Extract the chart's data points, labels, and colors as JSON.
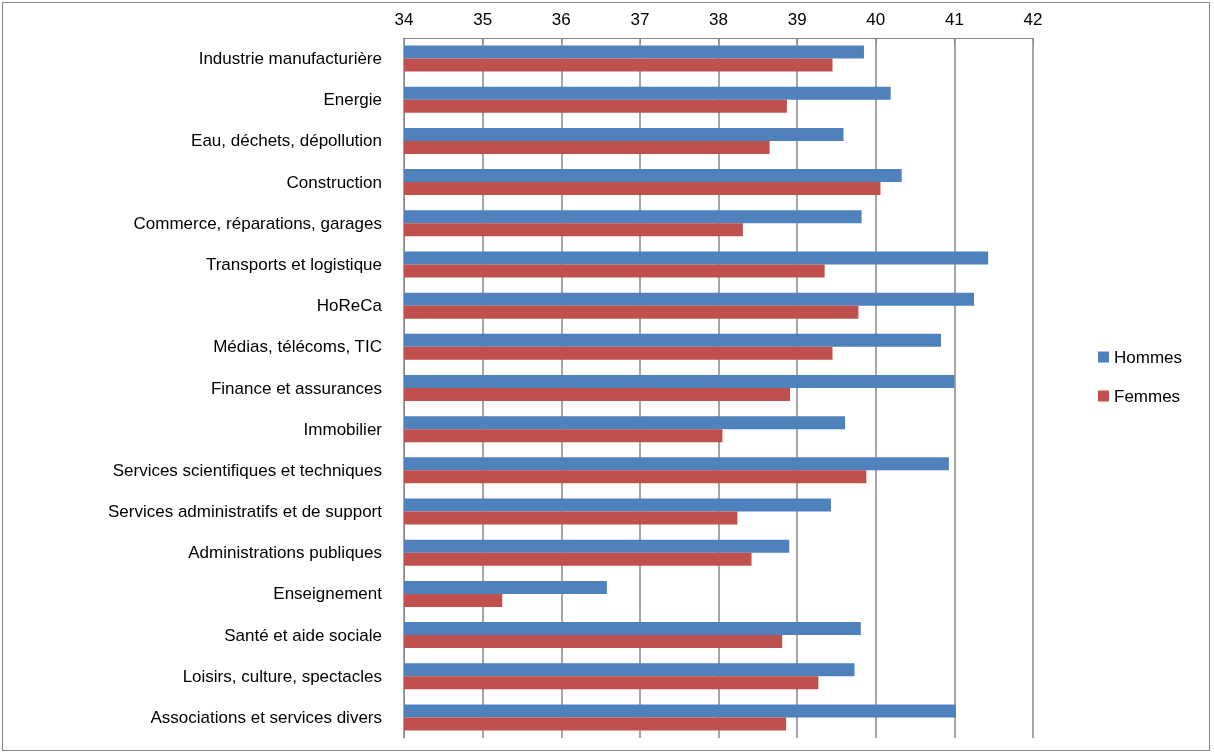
{
  "chart_data": {
    "type": "bar",
    "orientation": "horizontal",
    "categories": [
      "Industrie manufacturière",
      "Energie",
      "Eau, déchets, dépollution",
      "Construction",
      "Commerce, réparations, garages",
      "Transports et logistique",
      "HoReCa",
      "Médias, télécoms, TIC",
      "Finance et assurances",
      "Immobilier",
      "Services scientifiques et techniques",
      "Services administratifs et de support",
      "Administrations publiques",
      "Enseignement",
      "Santé et aide sociale",
      "Loisirs, culture, spectacles",
      "Associations et services divers"
    ],
    "series": [
      {
        "name": "Hommes",
        "color": "#4f81bd",
        "values": [
          39.85,
          40.19,
          39.59,
          40.33,
          39.82,
          41.43,
          41.25,
          40.83,
          41.0,
          39.61,
          40.93,
          39.43,
          38.9,
          36.58,
          39.81,
          39.73,
          41.02
        ]
      },
      {
        "name": "Femmes",
        "color": "#c0504d",
        "values": [
          39.45,
          38.87,
          38.65,
          40.06,
          38.31,
          39.35,
          39.78,
          39.45,
          38.91,
          38.05,
          39.88,
          38.24,
          38.42,
          35.25,
          38.81,
          39.27,
          38.86
        ]
      }
    ],
    "xlim": [
      34,
      42
    ],
    "xticks": [
      34,
      35,
      36,
      37,
      38,
      39,
      40,
      41,
      42
    ],
    "grid": "x",
    "legend": "right"
  }
}
